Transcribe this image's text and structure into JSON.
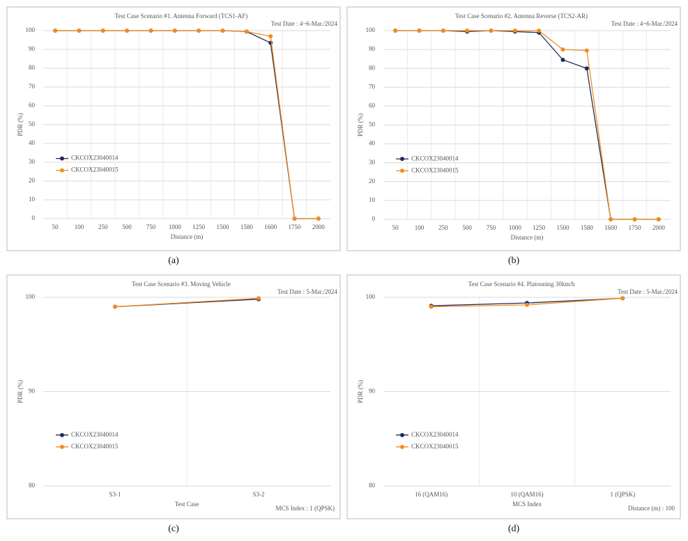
{
  "chart_data": [
    {
      "type": "line",
      "title": "Test Case Scenario #1. Antenna Forward (TCS1-AF)",
      "annotation": "Test Date : 4~6-Mar./2024",
      "caption": "(a)",
      "xlabel": "Distance (m)",
      "ylabel": "PDR (%)",
      "categories": [
        "50",
        "100",
        "250",
        "500",
        "750",
        "1000",
        "1250",
        "1500",
        "1580",
        "1600",
        "1750",
        "2000"
      ],
      "series": [
        {
          "name": "CKCOX23040014",
          "color": "#1f2d5c",
          "values": [
            100,
            100,
            100,
            100,
            100,
            100,
            100,
            100,
            99.5,
            93.5,
            0,
            0
          ]
        },
        {
          "name": "CKCOX23040015",
          "color": "#f28c1e",
          "values": [
            100,
            100,
            100,
            100,
            100,
            100,
            100,
            100,
            99.5,
            97,
            0,
            0
          ]
        }
      ],
      "ylim": [
        0,
        100
      ],
      "yticks": [
        0,
        10,
        20,
        30,
        40,
        50,
        60,
        70,
        80,
        90,
        100
      ],
      "grid": true,
      "legend": "center left"
    },
    {
      "type": "line",
      "title": "Test Case Scenario #2. Antenna Reverse (TCS2-AR)",
      "annotation": "Test Date : 4~6-Mar./2024",
      "caption": "(b)",
      "xlabel": "Distance (m)",
      "ylabel": "PDR (%)",
      "categories": [
        "50",
        "100",
        "250",
        "500",
        "750",
        "1000",
        "1250",
        "1500",
        "1580",
        "1600",
        "1750",
        "2000"
      ],
      "series": [
        {
          "name": "CKCOX23040014",
          "color": "#1f2d5c",
          "values": [
            100,
            100,
            100,
            99.5,
            100,
            99.5,
            99,
            84.5,
            80,
            0,
            0,
            0
          ]
        },
        {
          "name": "CKCOX23040015",
          "color": "#f28c1e",
          "values": [
            100,
            100,
            100,
            100,
            100,
            100,
            100,
            90,
            89.5,
            0,
            0,
            0
          ]
        }
      ],
      "ylim": [
        0,
        100
      ],
      "yticks": [
        0,
        10,
        20,
        30,
        40,
        50,
        60,
        70,
        80,
        90,
        100
      ],
      "grid": true,
      "legend": "center left"
    },
    {
      "type": "line",
      "title": "Test Case Scenario #3. Moving Vehicle",
      "annotation": "Test Date : 5-Mar./2024",
      "note": "MCS Index : 1 (QPSK)",
      "caption": "(c)",
      "xlabel": "Test Case",
      "ylabel": "PDR (%)",
      "categories": [
        "S3-1",
        "S3-2"
      ],
      "series": [
        {
          "name": "CKCOX23040014",
          "color": "#1f2d5c",
          "values": [
            99,
            99.8
          ]
        },
        {
          "name": "CKCOX23040015",
          "color": "#f28c1e",
          "values": [
            99,
            99.9
          ]
        }
      ],
      "ylim": [
        80,
        100
      ],
      "yticks": [
        80,
        90,
        100
      ],
      "grid": true,
      "legend": "lower left"
    },
    {
      "type": "line",
      "title": "Test Case Scenario #4. Platooning 30km/h",
      "annotation": "Test Date : 5-Mar./2024",
      "note": "Distance (m) : 100",
      "caption": "(d)",
      "xlabel": "MCS Index",
      "ylabel": "PDR (%)",
      "categories": [
        "16 (QAM16)",
        "10 (QAM16)",
        "1 (QPSK)"
      ],
      "series": [
        {
          "name": "CKCOX23040014",
          "color": "#1f2d5c",
          "values": [
            99.1,
            99.4,
            99.9
          ]
        },
        {
          "name": "CKCOX23040015",
          "color": "#f28c1e",
          "values": [
            99.0,
            99.2,
            99.9
          ]
        }
      ],
      "ylim": [
        80,
        100
      ],
      "yticks": [
        80,
        90,
        100
      ],
      "grid": true,
      "legend": "lower left"
    }
  ]
}
